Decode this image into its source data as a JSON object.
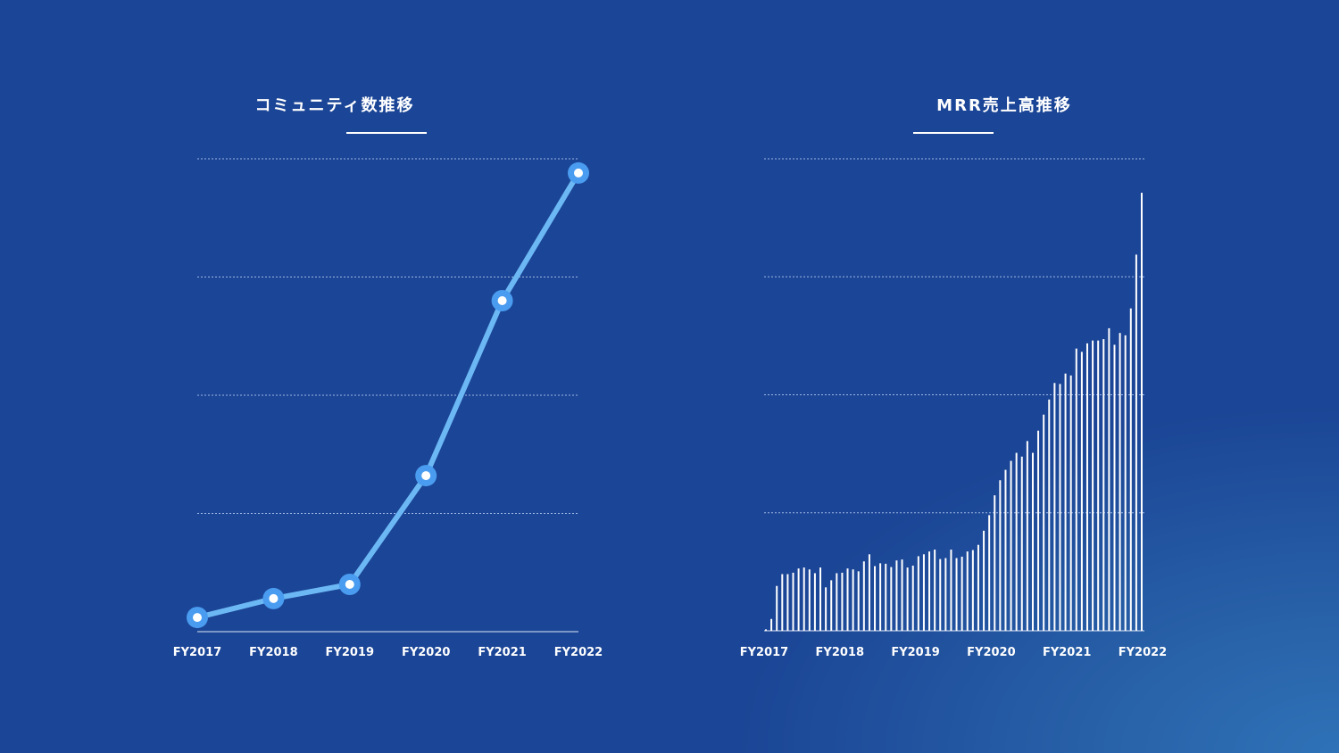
{
  "chart_data": [
    {
      "type": "line",
      "title": "コミュニティ数推移",
      "xlabel": "",
      "ylabel": "",
      "categories": [
        "FY2017",
        "FY2018",
        "FY2019",
        "FY2020",
        "FY2021",
        "FY2022"
      ],
      "values": [
        3,
        7,
        10,
        33,
        70,
        97
      ],
      "ylim": [
        0,
        100
      ],
      "grid": true,
      "colors": {
        "line": "#6cb8f5",
        "marker": "#4a9cf0",
        "marker_center": "#ffffff",
        "grid": "#9fb8e6"
      }
    },
    {
      "type": "bar",
      "title": "MRR売上高推移",
      "xlabel": "",
      "ylabel": "",
      "tick_labels": [
        "FY2017",
        "FY2018",
        "FY2019",
        "FY2020",
        "FY2021",
        "FY2022"
      ],
      "categories_note": "monthly bars",
      "values": [
        0.3,
        2.5,
        9.5,
        12,
        12,
        12.3,
        13.2,
        13.4,
        13,
        12.2,
        13.4,
        9.2,
        10.7,
        12.2,
        12.3,
        13.2,
        13,
        12.6,
        14.7,
        16.2,
        13.7,
        14.3,
        14.2,
        13.5,
        14.9,
        15.1,
        13.4,
        13.8,
        15.8,
        16.2,
        16.8,
        17.2,
        15.2,
        15.4,
        17.2,
        15.4,
        15.7,
        16.8,
        17.1,
        18.2,
        21.2,
        24.5,
        28.7,
        31.9,
        34.1,
        36,
        37.7,
        36.9,
        40.2,
        37.7,
        42.4,
        45.8,
        49,
        52.5,
        52.3,
        54.5,
        54.1,
        59.8,
        59.1,
        60.9,
        61.5,
        61.5,
        61.8,
        64.1,
        60.6,
        63.1,
        62.6,
        68.3,
        79.7,
        92.8
      ],
      "ylim": [
        0,
        100
      ],
      "grid": true,
      "colors": {
        "bar": "#ffffff",
        "grid": "#9fb8e6",
        "axis": "#ffffff"
      }
    }
  ]
}
